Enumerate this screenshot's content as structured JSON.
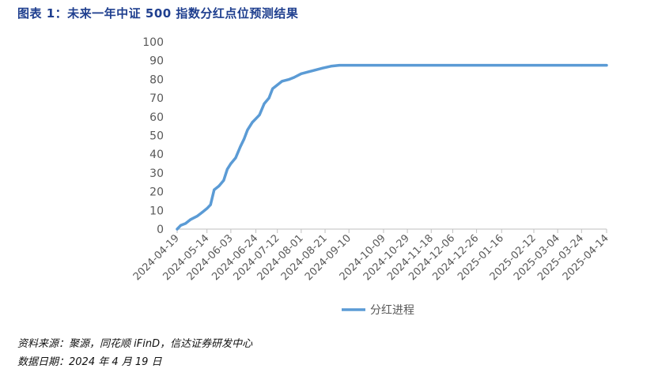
{
  "header": {
    "title": "图表 1：未来一年中证 500 指数分红点位预测结果"
  },
  "footer": {
    "source": "资料来源：聚源，同花顺 iFinD，信达证券研发中心",
    "date_note": "数据日期：2024 年 4 月 19 日"
  },
  "colors": {
    "title": "#1f3f8f",
    "line": "#5b9bd5",
    "axis": "#bfbfbf",
    "text": "#595959"
  },
  "chart_data": {
    "type": "line",
    "title": "",
    "xlabel": "",
    "ylabel": "",
    "ylim": [
      0,
      100
    ],
    "y_ticks": [
      0,
      10,
      20,
      30,
      40,
      50,
      60,
      70,
      80,
      90,
      100
    ],
    "x_tick_labels": [
      "2024-04-19",
      "2024-05-14",
      "2024-06-03",
      "2024-06-24",
      "2024-07-12",
      "2024-08-01",
      "2024-08-21",
      "2024-09-10",
      "2024-10-09",
      "2024-10-29",
      "2024-11-18",
      "2024-12-06",
      "2024-12-26",
      "2025-01-16",
      "2025-02-12",
      "2025-03-04",
      "2025-03-24",
      "2025-04-14"
    ],
    "grid": false,
    "legend": {
      "position": "bottom",
      "entries": [
        "分红进程"
      ]
    },
    "series": [
      {
        "name": "分红进程",
        "color": "#5b9bd5",
        "points": [
          [
            "2024-04-19",
            0
          ],
          [
            "2024-04-22",
            2
          ],
          [
            "2024-04-26",
            3
          ],
          [
            "2024-04-30",
            5
          ],
          [
            "2024-05-06",
            7
          ],
          [
            "2024-05-10",
            9
          ],
          [
            "2024-05-14",
            11
          ],
          [
            "2024-05-17",
            13
          ],
          [
            "2024-05-20",
            21
          ],
          [
            "2024-05-24",
            23
          ],
          [
            "2024-05-28",
            26
          ],
          [
            "2024-05-31",
            32
          ],
          [
            "2024-06-03",
            35
          ],
          [
            "2024-06-07",
            38
          ],
          [
            "2024-06-11",
            44
          ],
          [
            "2024-06-14",
            48
          ],
          [
            "2024-06-17",
            53
          ],
          [
            "2024-06-21",
            57
          ],
          [
            "2024-06-24",
            59
          ],
          [
            "2024-06-27",
            61
          ],
          [
            "2024-07-01",
            67
          ],
          [
            "2024-07-05",
            70
          ],
          [
            "2024-07-08",
            75
          ],
          [
            "2024-07-12",
            77
          ],
          [
            "2024-07-16",
            79
          ],
          [
            "2024-07-22",
            80
          ],
          [
            "2024-07-26",
            81
          ],
          [
            "2024-08-01",
            83
          ],
          [
            "2024-08-07",
            84
          ],
          [
            "2024-08-13",
            85
          ],
          [
            "2024-08-19",
            86
          ],
          [
            "2024-08-26",
            87
          ],
          [
            "2024-09-02",
            87.5
          ],
          [
            "2025-03-24",
            87.5
          ],
          [
            "2025-04-14",
            87.5
          ]
        ]
      }
    ]
  }
}
